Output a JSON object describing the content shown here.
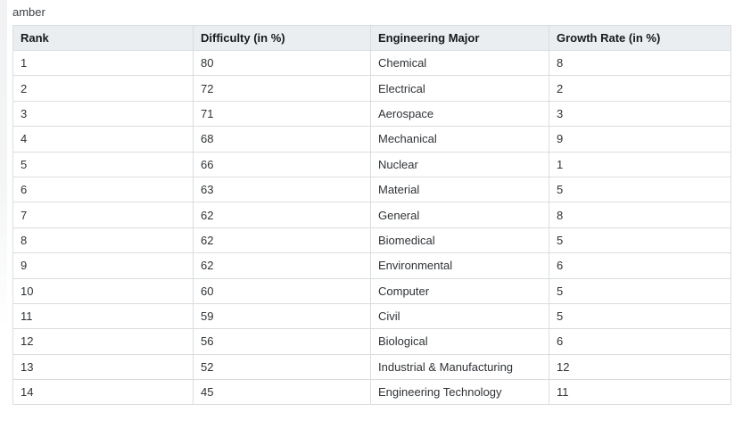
{
  "page": {
    "label": "amber"
  },
  "table": {
    "columns": [
      "Rank",
      "Difficulty (in %)",
      "Engineering Major",
      "Growth Rate (in %)"
    ],
    "rows": [
      [
        "1",
        "80",
        "Chemical",
        "8"
      ],
      [
        "2",
        "72",
        "Electrical",
        "2"
      ],
      [
        "3",
        "71",
        "Aerospace",
        "3"
      ],
      [
        "4",
        "68",
        "Mechanical",
        "9"
      ],
      [
        "5",
        "66",
        "Nuclear",
        "1"
      ],
      [
        "6",
        "63",
        "Material",
        "5"
      ],
      [
        "7",
        "62",
        "General",
        "8"
      ],
      [
        "8",
        "62",
        "Biomedical",
        "5"
      ],
      [
        "9",
        "62",
        "Environmental",
        "6"
      ],
      [
        "10",
        "60",
        "Computer",
        "5"
      ],
      [
        "11",
        "59",
        "Civil",
        "5"
      ],
      [
        "12",
        "56",
        "Biological",
        "6"
      ],
      [
        "13",
        "52",
        "Industrial & Manufacturing",
        "12"
      ],
      [
        "14",
        "45",
        "Engineering Technology",
        "11"
      ]
    ]
  },
  "colors": {
    "header_background": "#eaeef0",
    "border": "#d9dde0",
    "header_text": "#17191d",
    "cell_text": "#2f3337"
  }
}
